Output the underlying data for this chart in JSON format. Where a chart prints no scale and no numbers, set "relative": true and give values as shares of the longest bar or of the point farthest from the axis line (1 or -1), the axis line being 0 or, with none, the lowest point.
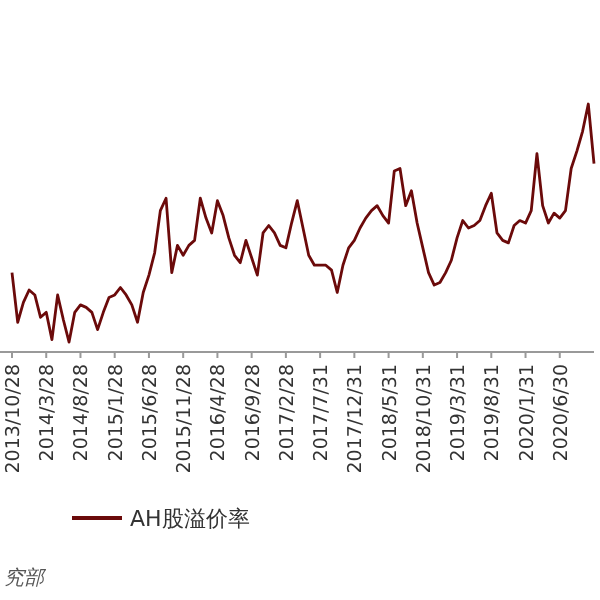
{
  "chart_data": {
    "type": "line",
    "relative": true,
    "legend": "bottom",
    "annotations": [
      "究部"
    ],
    "categories": [
      "2013/10/28",
      null,
      null,
      null,
      null,
      null,
      "2014/3/28",
      null,
      null,
      null,
      null,
      null,
      "2014/8/28",
      null,
      null,
      null,
      null,
      null,
      "2015/1/28",
      null,
      null,
      null,
      null,
      null,
      "2015/6/28",
      null,
      null,
      null,
      null,
      null,
      "2015/11/28",
      null,
      null,
      null,
      null,
      null,
      "2016/4/28",
      null,
      null,
      null,
      null,
      null,
      "2016/9/28",
      null,
      null,
      null,
      null,
      null,
      "2017/2/28",
      null,
      null,
      null,
      null,
      null,
      "2017/7/31",
      null,
      null,
      null,
      null,
      null,
      "2017/12/31",
      null,
      null,
      null,
      null,
      null,
      "2018/5/31",
      null,
      null,
      null,
      null,
      null,
      "2018/10/31",
      null,
      null,
      null,
      null,
      null,
      "2019/3/31",
      null,
      null,
      null,
      null,
      null,
      "2019/8/31",
      null,
      null,
      null,
      null,
      null,
      "2020/1/31",
      null,
      null,
      null,
      null,
      null,
      "2020/6/30",
      null,
      null,
      null,
      null,
      null,
      null
    ],
    "series": [
      {
        "name": "AH股溢价率",
        "color": "#6b0a0a",
        "values": [
          0.32,
          0.12,
          0.2,
          0.25,
          0.23,
          0.14,
          0.16,
          0.05,
          0.23,
          0.13,
          0.04,
          0.16,
          0.19,
          0.18,
          0.16,
          0.09,
          0.16,
          0.22,
          0.23,
          0.26,
          0.23,
          0.19,
          0.12,
          0.24,
          0.31,
          0.4,
          0.57,
          0.62,
          0.32,
          0.43,
          0.39,
          0.43,
          0.45,
          0.62,
          0.54,
          0.48,
          0.61,
          0.55,
          0.46,
          0.39,
          0.36,
          0.45,
          0.38,
          0.31,
          0.48,
          0.51,
          0.48,
          0.43,
          0.42,
          0.52,
          0.61,
          0.5,
          0.39,
          0.35,
          0.35,
          0.35,
          0.33,
          0.24,
          0.35,
          0.42,
          0.45,
          0.5,
          0.54,
          0.57,
          0.59,
          0.55,
          0.52,
          0.73,
          0.74,
          0.59,
          0.65,
          0.52,
          0.42,
          0.32,
          0.27,
          0.28,
          0.32,
          0.37,
          0.46,
          0.53,
          0.5,
          0.51,
          0.53,
          0.59,
          0.64,
          0.48,
          0.45,
          0.44,
          0.51,
          0.53,
          0.52,
          0.57,
          0.8,
          0.59,
          0.52,
          0.56,
          0.54,
          0.57,
          0.74,
          0.81,
          0.89,
          1,
          0.76
        ]
      }
    ]
  }
}
